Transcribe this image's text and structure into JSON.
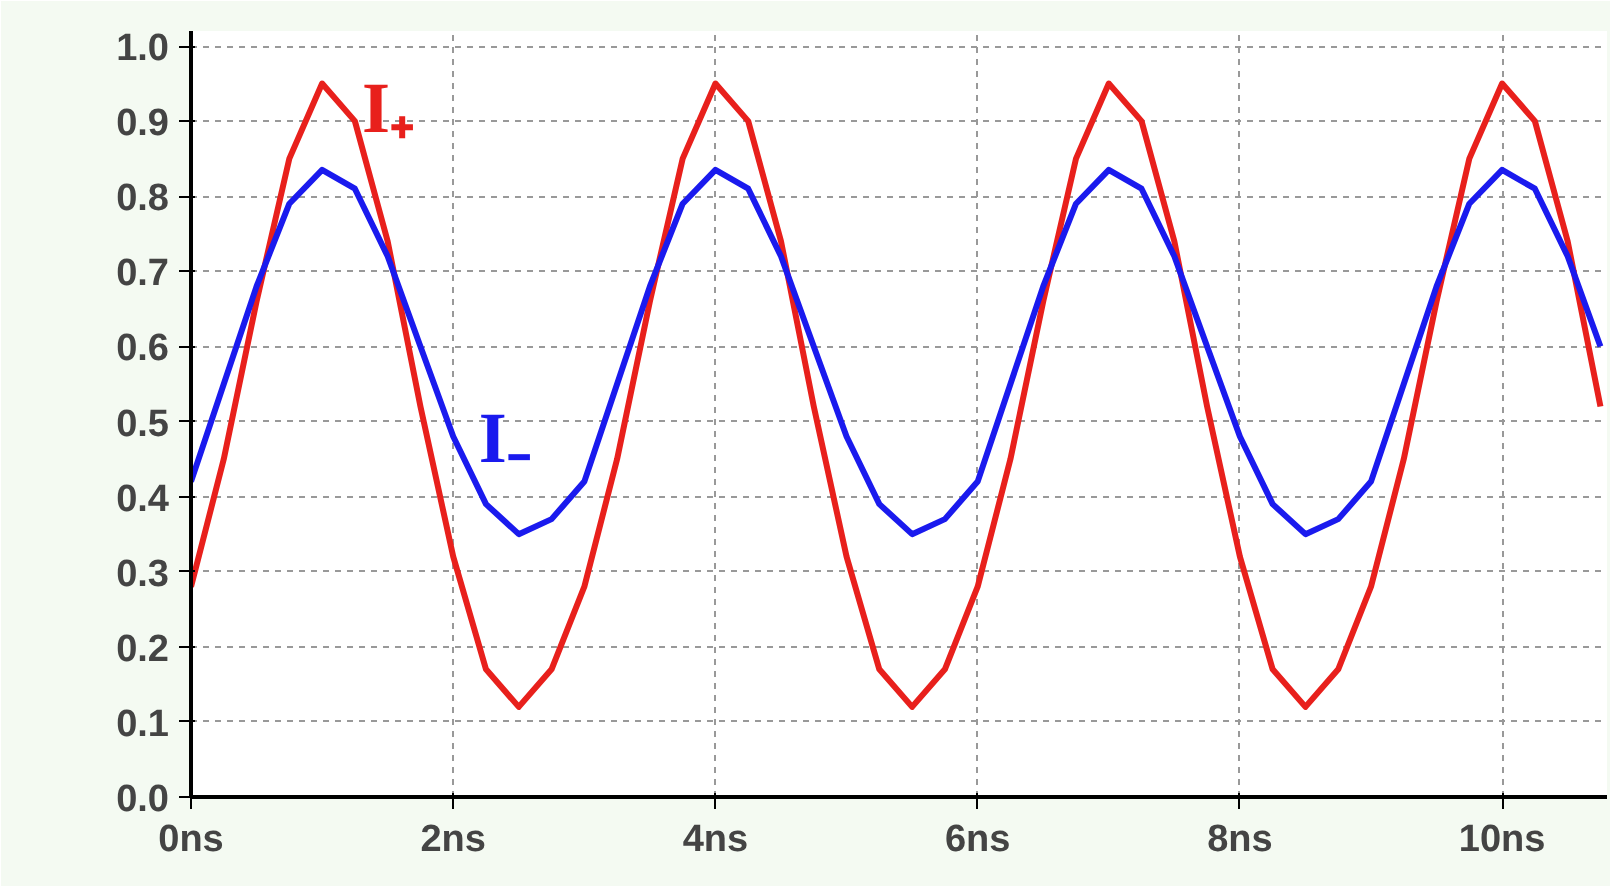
{
  "chart_data": {
    "type": "line",
    "x": [
      0,
      0.25,
      0.5,
      0.75,
      1,
      1.25,
      1.5,
      1.75,
      2,
      2.25,
      2.5,
      2.75,
      3,
      3.25,
      3.5,
      3.75,
      4,
      4.25,
      4.5,
      4.75,
      5,
      5.25,
      5.5,
      5.75,
      6,
      6.25,
      6.5,
      6.75,
      7,
      7.25,
      7.5,
      7.75,
      8,
      8.25,
      8.5,
      8.75,
      9,
      9.25,
      9.5,
      9.75,
      10,
      10.25,
      10.5,
      10.75
    ],
    "series": [
      {
        "name": "I₊",
        "color": "#e8201c",
        "values": [
          0.28,
          0.45,
          0.66,
          0.85,
          0.95,
          0.9,
          0.74,
          0.52,
          0.32,
          0.17,
          0.12,
          0.17,
          0.28,
          0.45,
          0.66,
          0.85,
          0.95,
          0.9,
          0.74,
          0.52,
          0.32,
          0.17,
          0.12,
          0.17,
          0.28,
          0.45,
          0.66,
          0.85,
          0.95,
          0.9,
          0.74,
          0.52,
          0.32,
          0.17,
          0.12,
          0.17,
          0.28,
          0.45,
          0.66,
          0.85,
          0.95,
          0.9,
          0.74,
          0.52
        ]
      },
      {
        "name": "I₋",
        "color": "#1a1aee",
        "values": [
          0.42,
          0.55,
          0.68,
          0.79,
          0.835,
          0.81,
          0.72,
          0.6,
          0.48,
          0.39,
          0.35,
          0.37,
          0.42,
          0.55,
          0.68,
          0.79,
          0.835,
          0.81,
          0.72,
          0.6,
          0.48,
          0.39,
          0.35,
          0.37,
          0.42,
          0.55,
          0.68,
          0.79,
          0.835,
          0.81,
          0.72,
          0.6,
          0.48,
          0.39,
          0.35,
          0.37,
          0.42,
          0.55,
          0.68,
          0.79,
          0.835,
          0.81,
          0.72,
          0.6
        ]
      }
    ],
    "xlim": [
      0,
      10.8
    ],
    "ylim": [
      0,
      1.02
    ],
    "xticks": [
      {
        "value": 0,
        "label": "0ns"
      },
      {
        "value": 2,
        "label": "2ns"
      },
      {
        "value": 4,
        "label": "4ns"
      },
      {
        "value": 6,
        "label": "6ns"
      },
      {
        "value": 8,
        "label": "8ns"
      },
      {
        "value": 10,
        "label": "10ns"
      }
    ],
    "yticks": [
      {
        "value": 0,
        "label": "0.0"
      },
      {
        "value": 0.1,
        "label": "0.1"
      },
      {
        "value": 0.2,
        "label": "0.2"
      },
      {
        "value": 0.3,
        "label": "0.3"
      },
      {
        "value": 0.4,
        "label": "0.4"
      },
      {
        "value": 0.5,
        "label": "0.5"
      },
      {
        "value": 0.6,
        "label": "0.6"
      },
      {
        "value": 0.7,
        "label": "0.7"
      },
      {
        "value": 0.8,
        "label": "0.8"
      },
      {
        "value": 0.9,
        "label": "0.9"
      },
      {
        "value": 1,
        "label": "1.0"
      }
    ],
    "grid": true,
    "line_style": "solid"
  }
}
